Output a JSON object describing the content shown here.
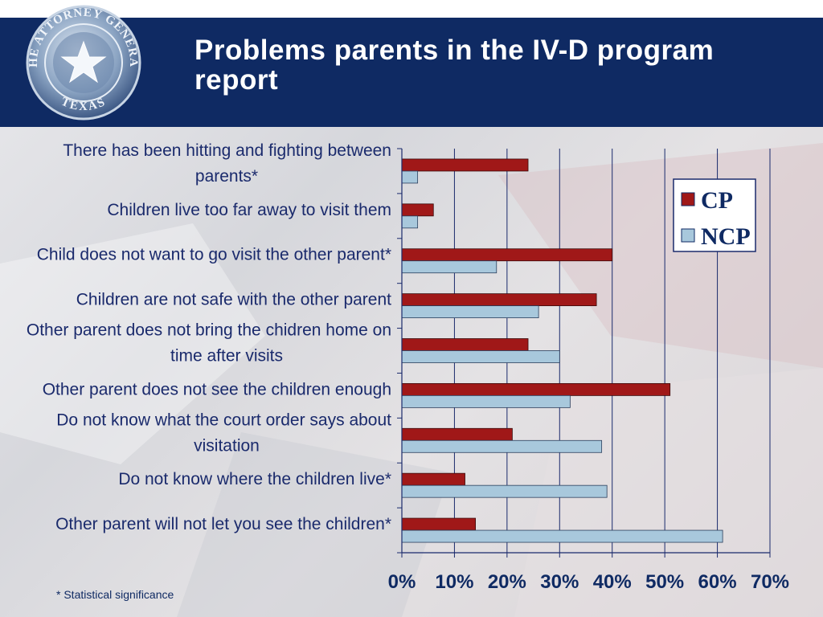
{
  "slide": {
    "title": "Problems parents in the IV-D program report",
    "footnote": "* Statistical significance",
    "seal_text": "THE ATTORNEY GENERAL",
    "seal_state": "TEXAS"
  },
  "colors": {
    "header_bg": "#0f2a63",
    "cp": "#a01818",
    "ncp": "#a8c8dc",
    "text": "#1a2a6c"
  },
  "chart_data": {
    "type": "bar",
    "orientation": "horizontal",
    "categories": [
      [
        "There has been hitting and fighting between",
        "parents*"
      ],
      [
        "Children live too far away to visit them"
      ],
      [
        "Child does not want to go visit the other parent*"
      ],
      [
        "Children are not safe with the other parent"
      ],
      [
        "Other parent does not bring the chidren home on",
        "time after visits"
      ],
      [
        "Other parent does not see the children enough"
      ],
      [
        "Do not know what the court order says about",
        "visitation"
      ],
      [
        "Do not know where the children live*"
      ],
      [
        "Other parent will not let you see the children*"
      ]
    ],
    "series": [
      {
        "name": "CP",
        "values": [
          24,
          6,
          40,
          37,
          24,
          51,
          21,
          12,
          14
        ]
      },
      {
        "name": "NCP",
        "values": [
          3,
          3,
          18,
          26,
          30,
          32,
          38,
          39,
          61
        ]
      }
    ],
    "xlim": [
      0,
      70
    ],
    "ticks": [
      "0%",
      "10%",
      "20%",
      "30%",
      "40%",
      "50%",
      "60%",
      "70%"
    ],
    "tick_values": [
      0,
      10,
      20,
      30,
      40,
      50,
      60,
      70
    ],
    "grid": true,
    "legend": "top-right"
  }
}
